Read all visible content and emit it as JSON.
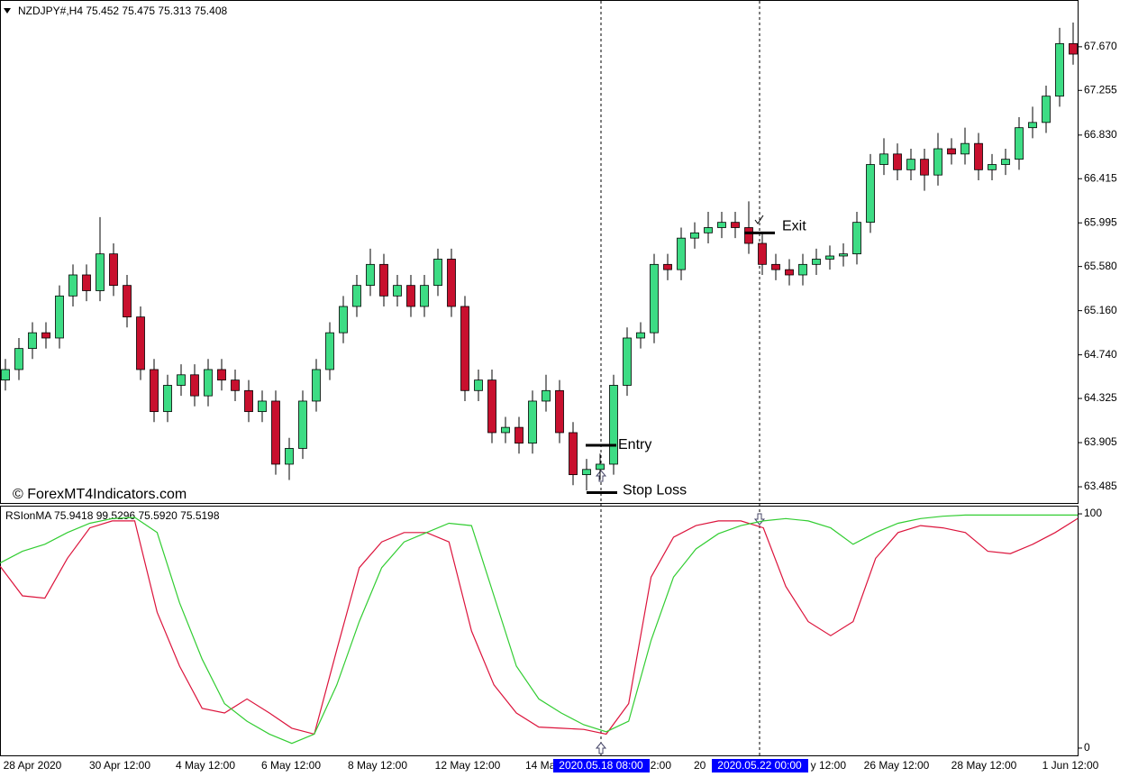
{
  "watermark": "© ForexMT4Indicators.com",
  "x_axis_labels": [
    "28 Apr 2020",
    "30 Apr 12:00",
    "4 May 12:00",
    "6 May 12:00",
    "8 May 12:00",
    "12 May 12:00",
    "14 Ma",
    "2:00",
    "20",
    "y 12:00",
    "26 May 12:00",
    "28 May 12:00",
    "1 Jun 12:00"
  ],
  "cursor_labels": [
    "2020.05.18 08:00",
    "2020.05.22 00:00"
  ],
  "chart_data": [
    {
      "type": "candlestick",
      "title": "NZDJPY#,H4  75.452 75.475 75.313 75.408",
      "up_color": "#3ddc84",
      "down_color": "#c8102e",
      "open": [
        64.5,
        64.6,
        64.8,
        64.95,
        64.9,
        65.3,
        65.5,
        65.35,
        65.7,
        65.4,
        65.1,
        64.6,
        64.2,
        64.45,
        64.55,
        64.35,
        64.6,
        64.5,
        64.4,
        64.2,
        64.3,
        63.7,
        63.85,
        64.3,
        64.6,
        64.95,
        65.2,
        65.4,
        65.6,
        65.3,
        65.4,
        65.2,
        65.4,
        65.65,
        65.2,
        64.4,
        64.5,
        64.0,
        64.05,
        63.9,
        64.3,
        64.4,
        64.0,
        63.6,
        63.65,
        63.7,
        64.45,
        64.9,
        64.95,
        65.6,
        65.55,
        65.85,
        65.9,
        65.95,
        66.0,
        65.95,
        65.8,
        65.6,
        65.55,
        65.5,
        65.6,
        65.65,
        65.68,
        65.7,
        66.0,
        66.55,
        66.65,
        66.5,
        66.6,
        66.45,
        66.7,
        66.65,
        66.75,
        66.5,
        66.55,
        66.6,
        66.9,
        66.95,
        67.2,
        67.7
      ],
      "high": [
        64.7,
        64.9,
        65.05,
        65.05,
        65.4,
        65.6,
        65.6,
        66.05,
        65.8,
        65.5,
        65.2,
        64.7,
        64.55,
        64.65,
        64.65,
        64.7,
        64.7,
        64.6,
        64.5,
        64.4,
        64.4,
        63.95,
        64.4,
        64.7,
        65.05,
        65.3,
        65.5,
        65.75,
        65.7,
        65.5,
        65.5,
        65.5,
        65.75,
        65.75,
        65.3,
        64.6,
        64.6,
        64.15,
        64.15,
        64.4,
        64.55,
        64.5,
        64.1,
        63.75,
        63.8,
        64.55,
        65.0,
        65.05,
        65.7,
        65.7,
        65.95,
        66.0,
        66.1,
        66.1,
        66.1,
        66.2,
        65.9,
        65.7,
        65.65,
        65.7,
        65.75,
        65.78,
        65.8,
        66.1,
        66.65,
        66.8,
        66.75,
        66.7,
        66.7,
        66.85,
        66.8,
        66.9,
        66.85,
        66.65,
        66.7,
        67.0,
        67.1,
        67.3,
        67.85,
        67.9
      ],
      "low": [
        64.4,
        64.5,
        64.7,
        64.8,
        64.8,
        65.2,
        65.25,
        65.25,
        65.3,
        65.0,
        64.5,
        64.1,
        64.1,
        64.35,
        64.25,
        64.25,
        64.4,
        64.3,
        64.1,
        64.1,
        63.6,
        63.55,
        63.75,
        64.2,
        64.5,
        64.85,
        65.1,
        65.3,
        65.2,
        65.2,
        65.1,
        65.1,
        65.3,
        65.1,
        64.3,
        64.3,
        63.9,
        63.9,
        63.8,
        63.8,
        64.2,
        63.9,
        63.5,
        63.45,
        63.55,
        63.6,
        64.35,
        64.8,
        64.85,
        65.45,
        65.45,
        65.75,
        65.8,
        65.85,
        65.85,
        65.7,
        65.5,
        65.45,
        65.4,
        65.4,
        65.5,
        65.55,
        65.58,
        65.6,
        65.9,
        66.45,
        66.4,
        66.4,
        66.3,
        66.35,
        66.55,
        66.55,
        66.4,
        66.4,
        66.45,
        66.5,
        66.8,
        66.85,
        67.1,
        67.5
      ],
      "close": [
        64.6,
        64.8,
        64.95,
        64.9,
        65.3,
        65.5,
        65.35,
        65.7,
        65.4,
        65.1,
        64.6,
        64.2,
        64.45,
        64.55,
        64.35,
        64.6,
        64.5,
        64.4,
        64.2,
        64.3,
        63.7,
        63.85,
        64.3,
        64.6,
        64.95,
        65.2,
        65.4,
        65.6,
        65.3,
        65.4,
        65.2,
        65.4,
        65.65,
        65.2,
        64.4,
        64.5,
        64.0,
        64.05,
        63.9,
        64.3,
        64.4,
        64.0,
        63.6,
        63.65,
        63.7,
        64.45,
        64.9,
        64.95,
        65.6,
        65.55,
        65.85,
        65.9,
        65.95,
        66.0,
        65.95,
        65.8,
        65.6,
        65.55,
        65.5,
        65.6,
        65.65,
        65.68,
        65.7,
        66.0,
        66.55,
        66.65,
        66.5,
        66.6,
        66.45,
        66.7,
        66.65,
        66.75,
        66.5,
        66.55,
        66.6,
        66.9,
        66.95,
        67.2,
        67.7,
        67.6
      ],
      "ylim": [
        63.331,
        68.106
      ],
      "yticks": [
        {
          "value": 67.67,
          "label": "67.670"
        },
        {
          "value": 67.255,
          "label": "67.255"
        },
        {
          "value": 66.83,
          "label": "66.830"
        },
        {
          "value": 66.415,
          "label": "66.415"
        },
        {
          "value": 65.995,
          "label": "65.995"
        },
        {
          "value": 65.58,
          "label": "65.580"
        },
        {
          "value": 65.16,
          "label": "65.160"
        },
        {
          "value": 64.74,
          "label": "64.740"
        },
        {
          "value": 64.325,
          "label": "64.325"
        },
        {
          "value": 63.905,
          "label": "63.905"
        },
        {
          "value": 63.485,
          "label": "63.485"
        }
      ],
      "annotations": [
        {
          "text": "Entry",
          "value": 63.88
        },
        {
          "text": "Stop Loss",
          "value": 63.43
        },
        {
          "text": "Exit",
          "value": 65.9
        }
      ]
    },
    {
      "type": "line",
      "title": "RSIonMA 75.9418 99.5296 75.5920 75.5198",
      "series": [
        {
          "color": "#dc143c",
          "values": [
            77.7,
            65,
            64,
            81,
            94,
            97,
            97,
            58,
            35,
            17,
            15,
            21,
            15,
            8.5,
            6,
            42,
            77,
            88,
            92,
            92,
            88,
            50,
            27,
            15,
            9,
            8.5,
            8,
            6,
            19,
            73,
            90,
            95,
            97,
            97,
            94,
            69,
            54,
            48,
            54,
            81,
            92,
            95,
            94,
            92,
            84,
            83,
            87,
            92,
            98
          ]
        },
        {
          "color": "#32cd32",
          "values": [
            79,
            84,
            87,
            92,
            96,
            98,
            98.5,
            92,
            62,
            38,
            19,
            11.5,
            6,
            2,
            6,
            27,
            54,
            77,
            88,
            92,
            96,
            95,
            65,
            35,
            21,
            15,
            10,
            7,
            11.5,
            46,
            73,
            85,
            91.5,
            95,
            97,
            98,
            97,
            94,
            87,
            92,
            96,
            98,
            99,
            99.5,
            99.5,
            99.5,
            99.5,
            99.5,
            99.5
          ]
        }
      ],
      "ylim": [
        -3.1,
        103.1
      ],
      "yticks": [
        0,
        100
      ]
    }
  ]
}
